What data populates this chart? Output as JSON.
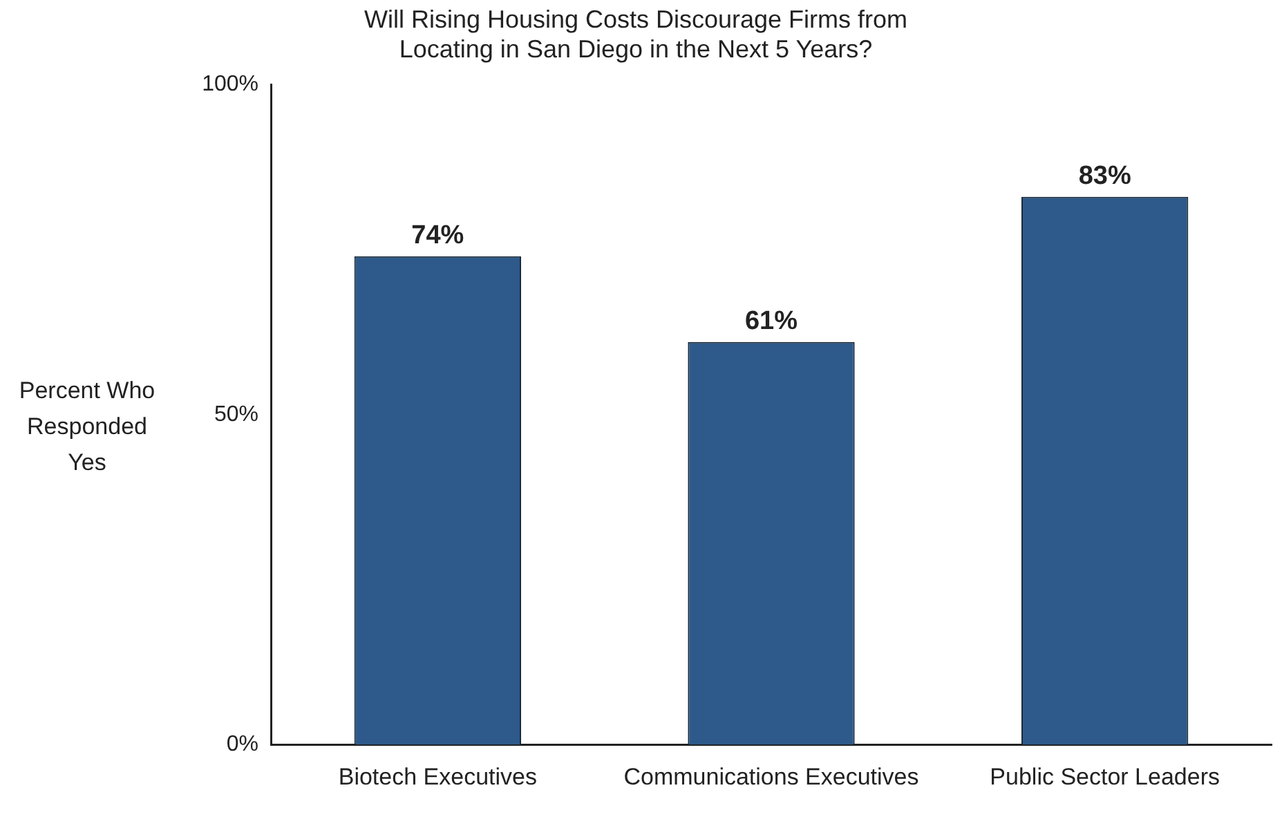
{
  "chart_data": {
    "type": "bar",
    "title": "Will Rising Housing Costs Discourage Firms from\nLocating in San Diego in the Next 5 Years?",
    "ylabel": "Percent Who\nResponded\nYes",
    "categories": [
      "Biotech Executives",
      "Communications Executives",
      "Public Sector Leaders"
    ],
    "values": [
      74,
      61,
      83
    ],
    "value_labels": [
      "74%",
      "61%",
      "83%"
    ],
    "color": "#2d5a8a",
    "ylim": [
      0,
      100
    ],
    "yticks": [
      {
        "value": 0,
        "label": "0%"
      },
      {
        "value": 50,
        "label": "50%"
      },
      {
        "value": 100,
        "label": "100%"
      }
    ],
    "grid": false,
    "legend": false
  }
}
